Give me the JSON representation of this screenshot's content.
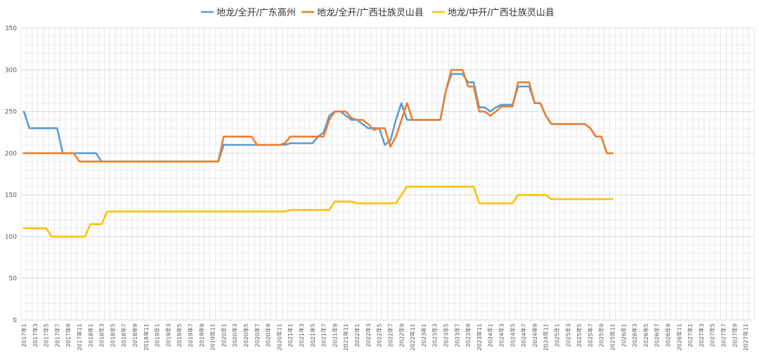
{
  "chart_data": {
    "type": "line",
    "ylim": [
      0,
      350
    ],
    "yticks": [
      0,
      50,
      100,
      150,
      200,
      250,
      300,
      350
    ],
    "grid": true,
    "legend_position": "top",
    "x_tick_labels": [
      "2017年1",
      "2017年3",
      "2017年5",
      "2017年7",
      "2017年9",
      "2017年11",
      "2018年1",
      "2018年3",
      "2018年5",
      "2018年7",
      "2018年9",
      "2018年11",
      "2019年1",
      "2019年3",
      "2019年5",
      "2019年7",
      "2019年9",
      "2019年11",
      "2020年1",
      "2020年3",
      "2020年5",
      "2020年7",
      "2020年9",
      "2020年11",
      "2021年1",
      "2021年3",
      "2021年5",
      "2021年7",
      "2021年9",
      "2021年11",
      "2022年1",
      "2022年3",
      "2022年5",
      "2022年7",
      "2022年9",
      "2022年11",
      "2023年1",
      "2023年3",
      "2023年5",
      "2023年7",
      "2023年9",
      "2023年11",
      "2024年1",
      "2024年3",
      "2024年5",
      "2024年7",
      "2024年9",
      "2024年11",
      "2025年1",
      "2025年3",
      "2025年5",
      "2025年7",
      "2025年9",
      "2025年11",
      "2026年1",
      "2026年3",
      "2026年5",
      "2026年7",
      "2026年9",
      "2026年11",
      "2027年1",
      "2027年3",
      "2027年5",
      "2027年7",
      "2027年9",
      "2027年11"
    ],
    "series": [
      {
        "name": "地龙/全开/广东高州",
        "color": "#5B9BD5",
        "values": [
          250,
          230,
          230,
          230,
          230,
          230,
          230,
          200,
          200,
          200,
          200,
          200,
          200,
          200,
          190,
          190,
          190,
          190,
          190,
          190,
          190,
          190,
          190,
          190,
          190,
          190,
          190,
          190,
          190,
          190,
          190,
          190,
          190,
          190,
          190,
          190,
          210,
          210,
          210,
          210,
          210,
          210,
          210,
          210,
          210,
          210,
          210,
          210,
          212,
          212,
          212,
          212,
          212,
          220,
          225,
          245,
          250,
          250,
          245,
          240,
          240,
          235,
          230,
          230,
          230,
          210,
          215,
          240,
          260,
          240,
          240,
          240,
          240,
          240,
          240,
          240,
          275,
          295,
          295,
          295,
          285,
          285,
          255,
          255,
          250,
          255,
          258,
          258,
          258,
          280,
          280,
          280,
          260,
          260,
          245,
          235,
          235,
          235,
          235,
          235,
          235,
          235,
          230,
          220,
          220,
          200,
          200
        ]
      },
      {
        "name": "地龙/全开/广西壮族灵山县",
        "color": "#ED7D31",
        "values": [
          200,
          200,
          200,
          200,
          200,
          200,
          200,
          200,
          200,
          200,
          190,
          190,
          190,
          190,
          190,
          190,
          190,
          190,
          190,
          190,
          190,
          190,
          190,
          190,
          190,
          190,
          190,
          190,
          190,
          190,
          190,
          190,
          190,
          190,
          190,
          190,
          220,
          220,
          220,
          220,
          220,
          220,
          210,
          210,
          210,
          210,
          210,
          212,
          220,
          220,
          220,
          220,
          220,
          220,
          220,
          240,
          250,
          250,
          250,
          242,
          240,
          240,
          235,
          228,
          230,
          230,
          208,
          220,
          240,
          260,
          240,
          240,
          240,
          240,
          240,
          240,
          275,
          300,
          300,
          300,
          280,
          280,
          250,
          250,
          245,
          250,
          256,
          256,
          256,
          285,
          285,
          285,
          260,
          260,
          245,
          235,
          235,
          235,
          235,
          235,
          235,
          235,
          230,
          220,
          220,
          200,
          200
        ]
      },
      {
        "name": "地龙/中开/广西壮族灵山县",
        "color": "#FFC000",
        "values": [
          110,
          110,
          110,
          110,
          110,
          100,
          100,
          100,
          100,
          100,
          100,
          100,
          115,
          115,
          115,
          130,
          130,
          130,
          130,
          130,
          130,
          130,
          130,
          130,
          130,
          130,
          130,
          130,
          130,
          130,
          130,
          130,
          130,
          130,
          130,
          130,
          130,
          130,
          130,
          130,
          130,
          130,
          130,
          130,
          130,
          130,
          130,
          130,
          132,
          132,
          132,
          132,
          132,
          132,
          132,
          132,
          142,
          142,
          142,
          142,
          140,
          140,
          140,
          140,
          140,
          140,
          140,
          140,
          150,
          160,
          160,
          160,
          160,
          160,
          160,
          160,
          160,
          160,
          160,
          160,
          160,
          160,
          140,
          140,
          140,
          140,
          140,
          140,
          140,
          150,
          150,
          150,
          150,
          150,
          150,
          145,
          145,
          145,
          145,
          145,
          145,
          145,
          145,
          145,
          145,
          145,
          145
        ]
      }
    ]
  }
}
